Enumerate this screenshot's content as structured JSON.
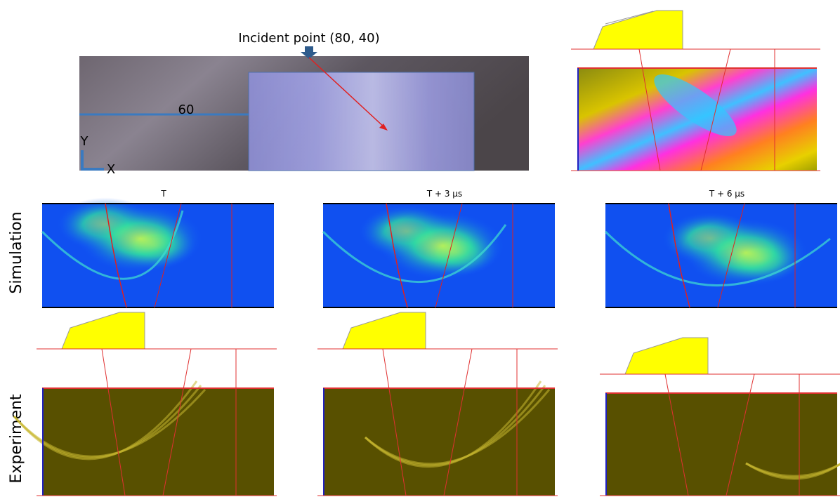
{
  "annotations": {
    "incident_point": "Incident point (80, 40)",
    "distance": "60",
    "axis_y": "Y",
    "axis_x": "X"
  },
  "time_labels": [
    "T",
    "T + 3 μs",
    "T + 6 μs"
  ],
  "row_labels": [
    "Simulation",
    "Experiment"
  ]
}
